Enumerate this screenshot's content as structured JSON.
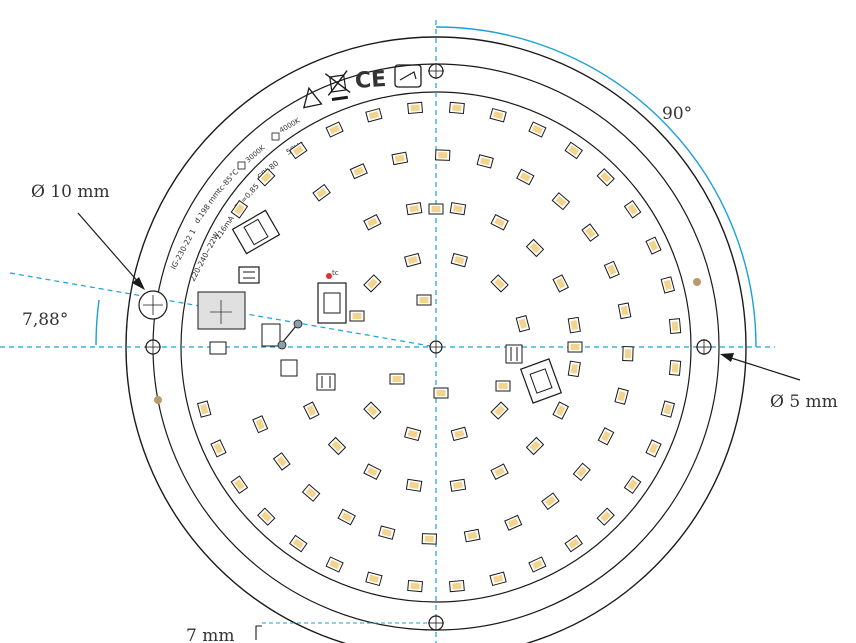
{
  "dimensions": {
    "hole_large": "Ø 10 mm",
    "angle_small": "7,88°",
    "angle_large": "90°",
    "hole_small": "Ø 5 mm",
    "edge_offset": "7 mm"
  },
  "pcb_markings": {
    "ig_code": "IG-230-22 1",
    "diameter": "d.198 mm",
    "tc": "tc-85°C",
    "cct1": "3000K",
    "cct2": "4000K",
    "voltage": "220-240~22W",
    "current": "116mA",
    "pf": "PF=0,85",
    "cri": "CRI-80",
    "freq": "50Hz",
    "ce": "CE",
    "tc_dot": "tc"
  },
  "colors": {
    "outline": "#1a1a1a",
    "centerline": "#1aa0d8",
    "led_fill": "#f4d48c",
    "mount_dot": "#b99a6a",
    "tc_marker": "#e03030",
    "component_gray": "#e0e0e0"
  }
}
